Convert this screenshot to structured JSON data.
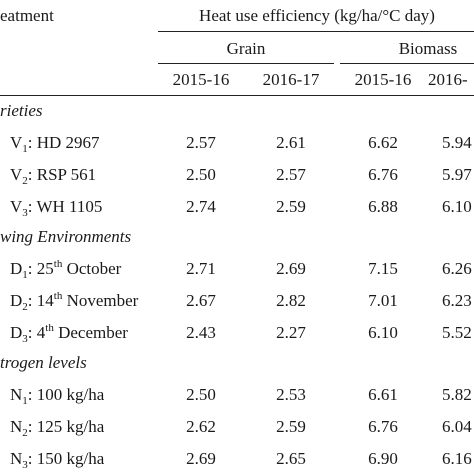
{
  "header": {
    "treatment": "eatment",
    "heat_use": "Heat use efficiency (kg/ha/°C day)",
    "grain": "Grain",
    "biomass": "Biomass",
    "years": [
      "2015-16",
      "2016-17",
      "2015-16",
      "2016-"
    ]
  },
  "groups": [
    {
      "title": "rieties",
      "rows": [
        {
          "pre": "V",
          "sub": "1",
          "sup": "",
          "post": ": HD 2967",
          "values": [
            "2.57",
            "2.61",
            "6.62",
            "5.94"
          ]
        },
        {
          "pre": "V",
          "sub": "2",
          "sup": "",
          "post": ": RSP 561",
          "values": [
            "2.50",
            "2.57",
            "6.76",
            "5.97"
          ]
        },
        {
          "pre": "V",
          "sub": "3",
          "sup": "",
          "post": ": WH 1105",
          "values": [
            "2.74",
            "2.59",
            "6.88",
            "6.10"
          ]
        }
      ]
    },
    {
      "title": "wing Environments",
      "rows": [
        {
          "pre": "D",
          "sub": "1",
          "mid": ": 25",
          "sup": "th",
          "post": " October",
          "values": [
            "2.71",
            "2.69",
            "7.15",
            "6.26"
          ]
        },
        {
          "pre": "D",
          "sub": "2",
          "mid": ": 14",
          "sup": "th",
          "post": " November",
          "values": [
            "2.67",
            "2.82",
            "7.01",
            "6.23"
          ]
        },
        {
          "pre": "D",
          "sub": "3",
          "mid": ": 4",
          "sup": "th",
          "post": " December",
          "values": [
            "2.43",
            "2.27",
            "6.10",
            "5.52"
          ]
        }
      ]
    },
    {
      "title": "trogen levels",
      "rows": [
        {
          "pre": "N",
          "sub": "1",
          "sup": "",
          "post": ": 100 kg/ha",
          "values": [
            "2.50",
            "2.53",
            "6.61",
            "5.82"
          ]
        },
        {
          "pre": "N",
          "sub": "2",
          "sup": "",
          "post": ": 125 kg/ha",
          "values": [
            "2.62",
            "2.59",
            "6.76",
            "6.04"
          ]
        },
        {
          "pre": "N",
          "sub": "3",
          "sup": "",
          "post": ": 150 kg/ha",
          "values": [
            "2.69",
            "2.65",
            "6.90",
            "6.16"
          ]
        }
      ]
    }
  ]
}
